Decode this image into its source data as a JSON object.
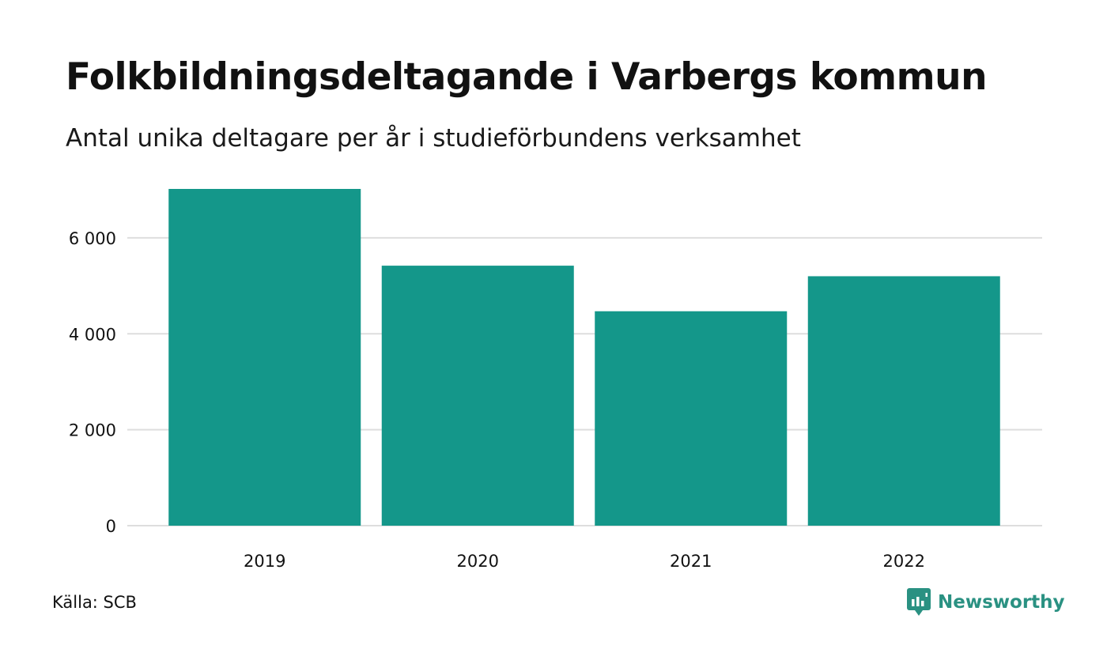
{
  "chart_data": {
    "type": "bar",
    "title": "Folkbildningsdeltagande i Varbergs kommun",
    "subtitle": "Antal unika deltagare per år i studieförbundens verksamhet",
    "categories": [
      "2019",
      "2020",
      "2021",
      "2022"
    ],
    "values": [
      7020,
      5420,
      4470,
      5200
    ],
    "ylim": [
      0,
      7020
    ],
    "yticks": [
      0,
      2000,
      4000,
      6000
    ],
    "ytick_labels": [
      "0",
      "2 000",
      "4 000",
      "6 000"
    ],
    "xlabel": "",
    "ylabel": "",
    "grid": true,
    "bar_color": "#14978a",
    "grid_color": "#dedede"
  },
  "source": "Källa: SCB",
  "brand": {
    "name": "Newsworthy",
    "color": "#2a9182",
    "icon": "bar-chart-speech-bubble-icon"
  }
}
